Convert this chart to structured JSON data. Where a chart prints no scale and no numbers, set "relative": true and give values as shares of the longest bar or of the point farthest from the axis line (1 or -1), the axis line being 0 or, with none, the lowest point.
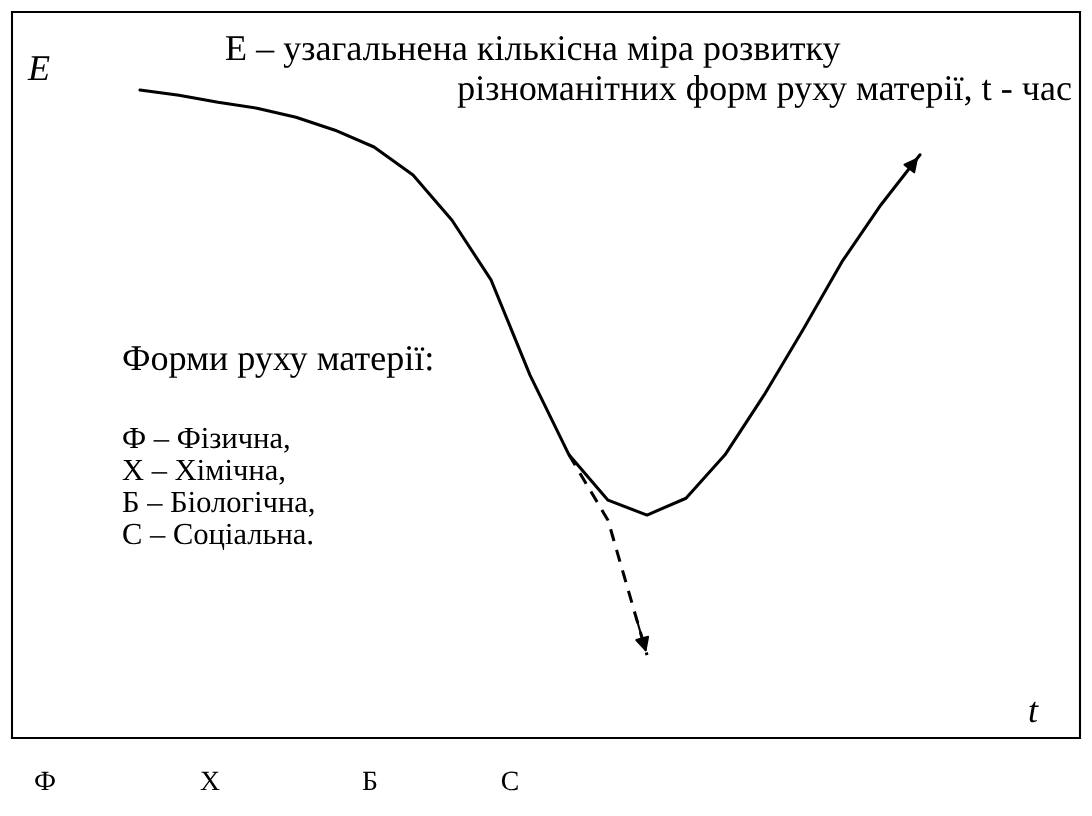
{
  "chart_data": {
    "type": "line",
    "relative": true,
    "ylabel": "E",
    "xlabel": "t",
    "categories": [
      null,
      null,
      null,
      null,
      null,
      null,
      null,
      null,
      null,
      null,
      null,
      null,
      null,
      null,
      null,
      null,
      null,
      null,
      null,
      null,
      null
    ],
    "series": [
      {
        "color": "#000000",
        "line_style": "solid",
        "values": [
          1.0,
          0.992,
          0.981,
          0.972,
          0.958,
          0.938,
          0.912,
          0.869,
          0.799,
          0.707,
          0.56,
          0.437,
          0.367,
          0.344,
          0.37,
          0.437,
          0.529,
          0.63,
          0.735,
          0.823,
          0.9
        ]
      },
      {
        "color": "#000000",
        "line_style": "dashed",
        "values": [
          null,
          null,
          null,
          null,
          null,
          null,
          null,
          null,
          null,
          null,
          null,
          0.437,
          0.336,
          0.128,
          null,
          null,
          null,
          null,
          null,
          null,
          null
        ]
      }
    ],
    "marker": "none",
    "legend": false,
    "grid": false,
    "annotations": [
      "E – узагальнена кількісна міра розвитку",
      "різноманітних форм руху матерії, t - час",
      "Форми руху матерії:",
      "Ф – Фізична,",
      "Х – Хімічна,",
      "Б – Біологічна,",
      "С – Соціальна.",
      "Ф",
      "Х",
      "Б",
      "С"
    ]
  }
}
